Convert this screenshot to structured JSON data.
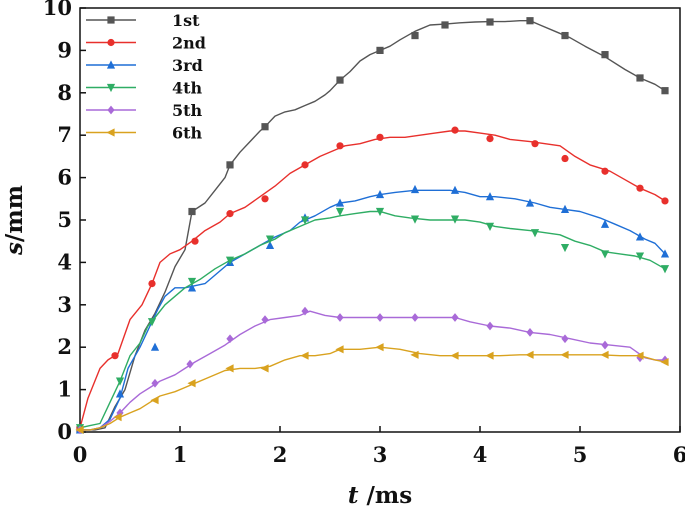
{
  "chart_data": {
    "type": "line",
    "title": "",
    "xlabel": {
      "var": "t",
      "unit": " /ms"
    },
    "ylabel": {
      "var": "s",
      "unit": "/mm"
    },
    "xlim": [
      0,
      6
    ],
    "ylim": [
      0,
      10
    ],
    "xticks": [
      0,
      1,
      2,
      3,
      4,
      5,
      6
    ],
    "yticks": [
      0,
      1,
      2,
      3,
      4,
      5,
      6,
      7,
      8,
      9,
      10
    ],
    "grid": false,
    "legend_position": "top-left",
    "series": [
      {
        "name": "1st",
        "color": "#555555",
        "marker": "square",
        "x": [
          0,
          0.15,
          0.25,
          0.35,
          0.45,
          0.55,
          0.65,
          0.75,
          0.85,
          0.95,
          1.05,
          1.12,
          1.25,
          1.35,
          1.45,
          1.5,
          1.6,
          1.7,
          1.8,
          1.85,
          1.95,
          2.05,
          2.15,
          2.25,
          2.35,
          2.45,
          2.5,
          2.6,
          2.7,
          2.8,
          2.9,
          3.0,
          3.1,
          3.2,
          3.35,
          3.5,
          3.65,
          3.8,
          3.95,
          4.1,
          4.25,
          4.4,
          4.5,
          4.6,
          4.75,
          4.9,
          5.05,
          5.25,
          5.45,
          5.6,
          5.75,
          5.85
        ],
        "y": [
          0.05,
          0.05,
          0.1,
          0.6,
          1.0,
          1.8,
          2.4,
          2.8,
          3.3,
          3.9,
          4.3,
          5.2,
          5.4,
          5.7,
          6.0,
          6.3,
          6.6,
          6.85,
          7.1,
          7.2,
          7.45,
          7.55,
          7.6,
          7.7,
          7.8,
          7.95,
          8.05,
          8.3,
          8.5,
          8.75,
          8.9,
          9.0,
          9.1,
          9.25,
          9.45,
          9.6,
          9.62,
          9.65,
          9.67,
          9.68,
          9.68,
          9.7,
          9.7,
          9.6,
          9.45,
          9.3,
          9.1,
          8.85,
          8.55,
          8.35,
          8.2,
          8.05
        ],
        "marker_points": [
          [
            0,
            0.05
          ],
          [
            1.12,
            5.2
          ],
          [
            1.5,
            6.3
          ],
          [
            1.85,
            7.2
          ],
          [
            2.6,
            8.3
          ],
          [
            3.0,
            9.0
          ],
          [
            3.35,
            9.35
          ],
          [
            3.65,
            9.6
          ],
          [
            4.1,
            9.67
          ],
          [
            4.5,
            9.7
          ],
          [
            4.85,
            9.35
          ],
          [
            5.25,
            8.9
          ],
          [
            5.6,
            8.35
          ],
          [
            5.85,
            8.05
          ]
        ]
      },
      {
        "name": "2nd",
        "color": "#e8302c",
        "marker": "circle",
        "x": [
          0,
          0.08,
          0.2,
          0.28,
          0.38,
          0.5,
          0.62,
          0.72,
          0.8,
          0.9,
          1.0,
          1.12,
          1.25,
          1.4,
          1.5,
          1.65,
          1.8,
          1.95,
          2.1,
          2.25,
          2.4,
          2.55,
          2.65,
          2.8,
          2.95,
          3.1,
          3.25,
          3.4,
          3.55,
          3.7,
          3.85,
          4.0,
          4.15,
          4.3,
          4.5,
          4.65,
          4.8,
          4.95,
          5.1,
          5.3,
          5.45,
          5.6,
          5.75,
          5.85
        ],
        "y": [
          0.1,
          0.8,
          1.5,
          1.7,
          1.85,
          2.65,
          3.0,
          3.5,
          4.0,
          4.2,
          4.3,
          4.5,
          4.75,
          4.95,
          5.15,
          5.3,
          5.55,
          5.8,
          6.1,
          6.3,
          6.5,
          6.65,
          6.75,
          6.8,
          6.9,
          6.95,
          6.95,
          7.0,
          7.05,
          7.1,
          7.1,
          7.05,
          7.0,
          6.9,
          6.85,
          6.8,
          6.75,
          6.5,
          6.3,
          6.15,
          5.95,
          5.75,
          5.6,
          5.45
        ],
        "marker_points": [
          [
            0,
            0.1
          ],
          [
            0.35,
            1.8
          ],
          [
            0.72,
            3.5
          ],
          [
            1.15,
            4.5
          ],
          [
            1.5,
            5.15
          ],
          [
            1.85,
            5.5
          ],
          [
            2.25,
            6.3
          ],
          [
            2.6,
            6.75
          ],
          [
            3.0,
            6.95
          ],
          [
            3.75,
            7.12
          ],
          [
            4.1,
            6.92
          ],
          [
            4.55,
            6.8
          ],
          [
            4.85,
            6.45
          ],
          [
            5.25,
            6.15
          ],
          [
            5.6,
            5.75
          ],
          [
            5.85,
            5.45
          ]
        ]
      },
      {
        "name": "3rd",
        "color": "#1f6fd6",
        "marker": "triangle-up",
        "x": [
          0,
          0.1,
          0.2,
          0.3,
          0.4,
          0.48,
          0.6,
          0.7,
          0.78,
          0.85,
          0.95,
          1.05,
          1.15,
          1.25,
          1.35,
          1.5,
          1.65,
          1.8,
          1.95,
          2.1,
          2.2,
          2.35,
          2.5,
          2.6,
          2.75,
          2.9,
          3.0,
          3.15,
          3.35,
          3.5,
          3.7,
          3.85,
          4.0,
          4.15,
          4.35,
          4.55,
          4.7,
          4.85,
          5.0,
          5.2,
          5.35,
          5.5,
          5.65,
          5.75,
          5.85
        ],
        "y": [
          0.05,
          0.05,
          0.1,
          0.3,
          0.8,
          1.5,
          2.0,
          2.5,
          2.9,
          3.2,
          3.4,
          3.4,
          3.45,
          3.5,
          3.7,
          4.0,
          4.2,
          4.4,
          4.6,
          4.75,
          4.95,
          5.1,
          5.3,
          5.4,
          5.45,
          5.55,
          5.6,
          5.65,
          5.7,
          5.7,
          5.7,
          5.65,
          5.55,
          5.55,
          5.5,
          5.4,
          5.3,
          5.25,
          5.2,
          5.05,
          4.9,
          4.75,
          4.55,
          4.45,
          4.2
        ],
        "marker_points": [
          [
            0,
            0.05
          ],
          [
            0.4,
            0.9
          ],
          [
            0.75,
            2.0
          ],
          [
            1.12,
            3.4
          ],
          [
            1.5,
            4.0
          ],
          [
            1.9,
            4.4
          ],
          [
            2.25,
            5.05
          ],
          [
            2.6,
            5.4
          ],
          [
            3.0,
            5.6
          ],
          [
            3.35,
            5.72
          ],
          [
            3.75,
            5.7
          ],
          [
            4.1,
            5.55
          ],
          [
            4.5,
            5.4
          ],
          [
            4.85,
            5.25
          ],
          [
            5.25,
            4.9
          ],
          [
            5.6,
            4.6
          ],
          [
            5.85,
            4.2
          ]
        ]
      },
      {
        "name": "4th",
        "color": "#2fad64",
        "marker": "triangle-down",
        "x": [
          0,
          0.1,
          0.2,
          0.3,
          0.4,
          0.5,
          0.6,
          0.68,
          0.75,
          0.85,
          0.95,
          1.05,
          1.2,
          1.35,
          1.5,
          1.65,
          1.8,
          1.95,
          2.05,
          2.2,
          2.35,
          2.5,
          2.6,
          2.75,
          2.9,
          3.0,
          3.15,
          3.3,
          3.5,
          3.7,
          3.85,
          4.0,
          4.15,
          4.3,
          4.5,
          4.65,
          4.8,
          4.95,
          5.1,
          5.25,
          5.4,
          5.55,
          5.7,
          5.85
        ],
        "y": [
          0.1,
          0.15,
          0.2,
          0.7,
          1.2,
          1.8,
          2.1,
          2.5,
          2.7,
          3.0,
          3.2,
          3.4,
          3.6,
          3.85,
          4.05,
          4.2,
          4.4,
          4.55,
          4.7,
          4.85,
          5.0,
          5.05,
          5.1,
          5.15,
          5.2,
          5.2,
          5.1,
          5.05,
          5.0,
          5.0,
          5.0,
          4.95,
          4.85,
          4.8,
          4.75,
          4.7,
          4.65,
          4.5,
          4.4,
          4.25,
          4.2,
          4.15,
          4.05,
          3.85
        ],
        "marker_points": [
          [
            0,
            0.1
          ],
          [
            0.4,
            1.2
          ],
          [
            0.72,
            2.6
          ],
          [
            1.12,
            3.55
          ],
          [
            1.5,
            4.05
          ],
          [
            1.9,
            4.55
          ],
          [
            2.25,
            5.0
          ],
          [
            2.6,
            5.2
          ],
          [
            3.0,
            5.2
          ],
          [
            3.35,
            5.02
          ],
          [
            3.75,
            5.02
          ],
          [
            4.1,
            4.85
          ],
          [
            4.55,
            4.7
          ],
          [
            4.85,
            4.35
          ],
          [
            5.25,
            4.2
          ],
          [
            5.6,
            4.15
          ],
          [
            5.85,
            3.85
          ]
        ]
      },
      {
        "name": "5th",
        "color": "#a96ad8",
        "marker": "diamond",
        "x": [
          0,
          0.1,
          0.2,
          0.3,
          0.4,
          0.5,
          0.6,
          0.7,
          0.8,
          0.95,
          1.05,
          1.15,
          1.3,
          1.45,
          1.6,
          1.75,
          1.9,
          2.05,
          2.2,
          2.3,
          2.45,
          2.6,
          2.8,
          3.0,
          3.2,
          3.4,
          3.6,
          3.75,
          3.9,
          4.1,
          4.3,
          4.5,
          4.7,
          4.9,
          5.1,
          5.3,
          5.5,
          5.65,
          5.75,
          5.85
        ],
        "y": [
          0.05,
          0.05,
          0.1,
          0.25,
          0.45,
          0.7,
          0.9,
          1.05,
          1.2,
          1.35,
          1.5,
          1.65,
          1.85,
          2.05,
          2.3,
          2.5,
          2.65,
          2.7,
          2.75,
          2.85,
          2.75,
          2.7,
          2.7,
          2.7,
          2.7,
          2.7,
          2.7,
          2.7,
          2.6,
          2.5,
          2.45,
          2.35,
          2.3,
          2.2,
          2.1,
          2.05,
          2.0,
          1.75,
          1.7,
          1.7
        ],
        "marker_points": [
          [
            0,
            0.05
          ],
          [
            0.4,
            0.45
          ],
          [
            0.75,
            1.15
          ],
          [
            1.1,
            1.6
          ],
          [
            1.5,
            2.2
          ],
          [
            1.85,
            2.65
          ],
          [
            2.25,
            2.85
          ],
          [
            2.6,
            2.7
          ],
          [
            3.0,
            2.7
          ],
          [
            3.35,
            2.7
          ],
          [
            3.75,
            2.7
          ],
          [
            4.1,
            2.5
          ],
          [
            4.5,
            2.35
          ],
          [
            4.85,
            2.2
          ],
          [
            5.25,
            2.05
          ],
          [
            5.6,
            1.75
          ],
          [
            5.85,
            1.7
          ]
        ]
      },
      {
        "name": "6th",
        "color": "#d9a21f",
        "marker": "triangle-left",
        "x": [
          0,
          0.1,
          0.2,
          0.3,
          0.4,
          0.5,
          0.6,
          0.7,
          0.8,
          0.95,
          1.05,
          1.15,
          1.3,
          1.45,
          1.6,
          1.75,
          1.9,
          2.05,
          2.2,
          2.35,
          2.5,
          2.6,
          2.8,
          3.0,
          3.2,
          3.4,
          3.6,
          3.8,
          4.0,
          4.2,
          4.4,
          4.6,
          4.8,
          5.0,
          5.2,
          5.4,
          5.6,
          5.75,
          5.85
        ],
        "y": [
          0.05,
          0.05,
          0.1,
          0.2,
          0.35,
          0.45,
          0.55,
          0.7,
          0.85,
          0.95,
          1.05,
          1.15,
          1.3,
          1.45,
          1.5,
          1.5,
          1.55,
          1.7,
          1.8,
          1.8,
          1.85,
          1.95,
          1.95,
          2.0,
          1.95,
          1.85,
          1.8,
          1.8,
          1.8,
          1.8,
          1.82,
          1.82,
          1.82,
          1.82,
          1.82,
          1.8,
          1.8,
          1.7,
          1.65
        ],
        "marker_points": [
          [
            0,
            0.05
          ],
          [
            0.38,
            0.35
          ],
          [
            0.75,
            0.75
          ],
          [
            1.12,
            1.15
          ],
          [
            1.5,
            1.5
          ],
          [
            1.85,
            1.5
          ],
          [
            2.25,
            1.8
          ],
          [
            2.6,
            1.95
          ],
          [
            3.0,
            2.0
          ],
          [
            3.35,
            1.82
          ],
          [
            3.75,
            1.8
          ],
          [
            4.1,
            1.8
          ],
          [
            4.5,
            1.82
          ],
          [
            4.85,
            1.82
          ],
          [
            5.25,
            1.82
          ],
          [
            5.6,
            1.8
          ],
          [
            5.85,
            1.65
          ]
        ]
      }
    ]
  }
}
